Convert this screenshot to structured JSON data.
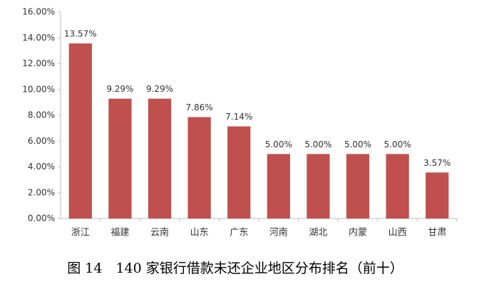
{
  "chart_data": {
    "type": "bar",
    "title": "图 14　140 家银行借款未还企业地区分布排名（前十）",
    "categories": [
      "浙江",
      "福建",
      "云南",
      "山东",
      "广东",
      "河南",
      "湖北",
      "内蒙",
      "山西",
      "甘肃"
    ],
    "values": [
      13.57,
      9.29,
      9.29,
      7.86,
      7.14,
      5.0,
      5.0,
      5.0,
      5.0,
      3.57
    ],
    "value_labels": [
      "13.57%",
      "9.29%",
      "9.29%",
      "7.86%",
      "7.14%",
      "5.00%",
      "5.00%",
      "5.00%",
      "5.00%",
      "3.57%"
    ],
    "color": "#c0504d",
    "ylim": [
      0,
      16
    ],
    "yticks": [
      {
        "value": 0,
        "label": "0.00%"
      },
      {
        "value": 2,
        "label": "2.00%"
      },
      {
        "value": 4,
        "label": "4.00%"
      },
      {
        "value": 6,
        "label": "6.00%"
      },
      {
        "value": 8,
        "label": "8.00%"
      },
      {
        "value": 10,
        "label": "10.00%"
      },
      {
        "value": 12,
        "label": "12.00%"
      },
      {
        "value": 14,
        "label": "14.00%"
      },
      {
        "value": 16,
        "label": "16.00%"
      }
    ],
    "grid": false
  }
}
